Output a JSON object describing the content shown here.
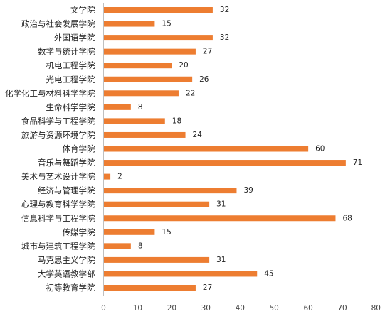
{
  "chart_data": {
    "type": "bar",
    "orientation": "horizontal",
    "categories": [
      "文学院",
      "政治与社会发展学院",
      "外国语学院",
      "数学与统计学院",
      "机电工程学院",
      "光电工程学院",
      "化学化工与材料科学学院",
      "生命科学学院",
      "食品科学与工程学院",
      "旅游与资源环境学院",
      "体育学院",
      "音乐与舞蹈学院",
      "美术与艺术设计学院",
      "经济与管理学院",
      "心理与教育科学学院",
      "信息科学与工程学院",
      "传媒学院",
      "城市与建筑工程学院",
      "马克思主义学院",
      "大学英语教学部",
      "初等教育学院"
    ],
    "values": [
      32,
      15,
      32,
      27,
      20,
      26,
      22,
      8,
      18,
      24,
      60,
      71,
      2,
      39,
      31,
      68,
      15,
      8,
      31,
      45,
      27
    ],
    "xlim": [
      0,
      80
    ],
    "xticks": [
      0,
      10,
      20,
      30,
      40,
      50,
      60,
      70,
      80
    ],
    "bar_color": "#ED7D31",
    "data_labels": true,
    "grid": false,
    "legend": "none"
  }
}
